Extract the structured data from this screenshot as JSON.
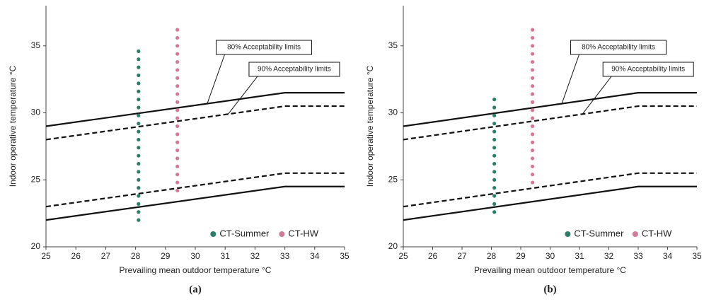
{
  "chart_data": [
    {
      "type": "scatter",
      "panel_label": "(a)",
      "x_label": "Prevailing mean outdoor temperature °C",
      "y_label": "Indoor operative temperature °C",
      "xlim": [
        25,
        35
      ],
      "ylim": [
        20,
        38
      ],
      "xticks": [
        25,
        26,
        27,
        28,
        29,
        30,
        31,
        32,
        33,
        34,
        35
      ],
      "yticks": [
        20,
        25,
        30,
        35
      ],
      "grid": false,
      "series": [
        {
          "name": "CT-Summer",
          "color": "#2e7d6b",
          "x": [
            28.1,
            28.1,
            28.1,
            28.1,
            28.1,
            28.1,
            28.1,
            28.1,
            28.1,
            28.1,
            28.1,
            28.1,
            28.1,
            28.1,
            28.1,
            28.1,
            28.1,
            28.1,
            28.1,
            28.1,
            28.1,
            28.1
          ],
          "values": [
            22.0,
            22.6,
            23.2,
            23.8,
            24.4,
            25.0,
            25.6,
            26.2,
            26.8,
            27.4,
            28.0,
            28.6,
            29.2,
            29.8,
            30.4,
            31.0,
            31.6,
            32.2,
            32.8,
            33.4,
            34.0,
            34.6
          ]
        },
        {
          "name": "CT-HW",
          "color": "#d07a9a",
          "x": [
            29.4,
            29.4,
            29.4,
            29.4,
            29.4,
            29.4,
            29.4,
            29.4,
            29.4,
            29.4,
            29.4,
            29.4,
            29.4,
            29.4,
            29.4,
            29.4,
            29.4,
            29.4,
            29.4,
            29.4,
            29.4
          ],
          "values": [
            24.2,
            24.8,
            25.4,
            26.0,
            26.6,
            27.2,
            27.8,
            28.4,
            29.0,
            29.6,
            30.2,
            30.8,
            31.4,
            32.0,
            32.6,
            33.2,
            33.8,
            34.4,
            35.0,
            35.6,
            36.2
          ]
        }
      ],
      "limits": [
        {
          "label": "80% Acceptability limits",
          "dashed": false,
          "x": [
            25,
            33,
            35
          ],
          "upper": [
            29,
            31.5,
            31.5
          ],
          "lower": [
            22,
            24.5,
            24.5
          ]
        },
        {
          "label": "90% Acceptability limits",
          "dashed": true,
          "x": [
            25,
            33,
            35
          ],
          "upper": [
            28,
            30.5,
            30.5
          ],
          "lower": [
            23,
            25.5,
            25.5
          ]
        }
      ]
    },
    {
      "type": "scatter",
      "panel_label": "(b)",
      "x_label": "Prevailing mean outdoor temperature °C",
      "y_label": "Indoor operative temperature °C",
      "xlim": [
        25,
        35
      ],
      "ylim": [
        20,
        38
      ],
      "xticks": [
        25,
        26,
        27,
        28,
        29,
        30,
        31,
        32,
        33,
        34,
        35
      ],
      "yticks": [
        20,
        25,
        30,
        35
      ],
      "grid": false,
      "series": [
        {
          "name": "CT-Summer",
          "color": "#2e7d6b",
          "x": [
            28.1,
            28.1,
            28.1,
            28.1,
            28.1,
            28.1,
            28.1,
            28.1,
            28.1,
            28.1,
            28.1,
            28.1,
            28.1,
            28.1,
            28.1
          ],
          "values": [
            22.6,
            23.2,
            23.8,
            24.4,
            25.0,
            25.6,
            26.2,
            26.8,
            27.4,
            28.0,
            28.6,
            29.2,
            29.8,
            30.4,
            31.0
          ]
        },
        {
          "name": "CT-HW",
          "color": "#d07a9a",
          "x": [
            29.4,
            29.4,
            29.4,
            29.4,
            29.4,
            29.4,
            29.4,
            29.4,
            29.4,
            29.4,
            29.4,
            29.4,
            29.4,
            29.4,
            29.4,
            29.4,
            29.4,
            29.4,
            29.4,
            29.4
          ],
          "values": [
            24.8,
            25.4,
            26.0,
            26.6,
            27.2,
            27.8,
            28.4,
            29.0,
            29.6,
            30.2,
            30.8,
            31.4,
            32.0,
            32.6,
            33.2,
            33.8,
            34.4,
            35.0,
            35.6,
            36.2
          ]
        }
      ],
      "limits": [
        {
          "label": "80% Acceptability limits",
          "dashed": false,
          "x": [
            25,
            33,
            35
          ],
          "upper": [
            29,
            31.5,
            31.5
          ],
          "lower": [
            22,
            24.5,
            24.5
          ]
        },
        {
          "label": "90% Acceptability limits",
          "dashed": true,
          "x": [
            25,
            33,
            35
          ],
          "upper": [
            28,
            30.5,
            30.5
          ],
          "lower": [
            23,
            25.5,
            25.5
          ]
        }
      ]
    }
  ]
}
